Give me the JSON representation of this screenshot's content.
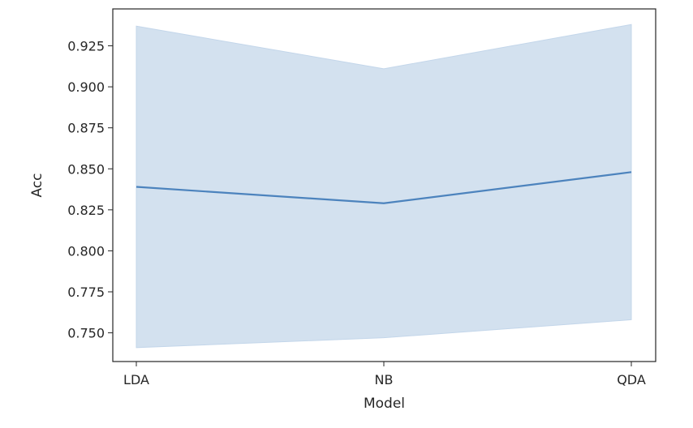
{
  "chart_data": {
    "type": "line",
    "title": "",
    "xlabel": "Model",
    "ylabel": "Acc",
    "categories": [
      "LDA",
      "NB",
      "QDA"
    ],
    "series": [
      {
        "values": [
          0.839,
          0.829,
          0.848
        ],
        "ci_lower": [
          0.741,
          0.747,
          0.758
        ],
        "ci_upper": [
          0.937,
          0.911,
          0.938
        ]
      }
    ],
    "ylim": [
      0.7325,
      0.9475
    ],
    "yticks": [
      0.75,
      0.775,
      0.8,
      0.825,
      0.85,
      0.875,
      0.9,
      0.925
    ],
    "ytick_labels": [
      "0.750",
      "0.775",
      "0.800",
      "0.825",
      "0.850",
      "0.875",
      "0.900",
      "0.925"
    ],
    "grid": false,
    "colors": {
      "line": "#4c83bd",
      "band": "#d3e1ef"
    }
  }
}
